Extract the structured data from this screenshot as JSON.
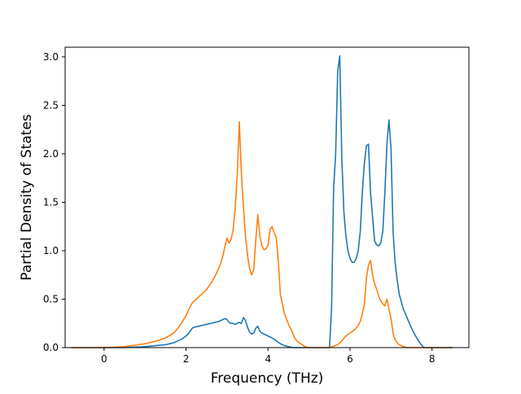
{
  "chart_data": {
    "type": "line",
    "title": "",
    "xlabel": "Frequency (THz)",
    "ylabel": "Partial Density of States",
    "xlim": [
      -0.95,
      8.9
    ],
    "ylim": [
      0,
      3.1
    ],
    "xticks": [
      0,
      2,
      4,
      6,
      8
    ],
    "yticks": [
      0.0,
      0.5,
      1.0,
      1.5,
      2.0,
      2.5,
      3.0
    ],
    "xtick_labels": [
      "0",
      "2",
      "4",
      "6",
      "8"
    ],
    "ytick_labels": [
      "0.0",
      "0.5",
      "1.0",
      "1.5",
      "2.0",
      "2.5",
      "3.0"
    ],
    "grid": false,
    "legend": "none",
    "series": [
      {
        "color": "#1f77b4",
        "x": [
          -0.8,
          0.0,
          0.5,
          1.0,
          1.5,
          1.7,
          1.8,
          1.9,
          2.0,
          2.05,
          2.1,
          2.15,
          2.2,
          2.3,
          2.4,
          2.5,
          2.6,
          2.7,
          2.8,
          2.9,
          2.95,
          3.0,
          3.05,
          3.1,
          3.15,
          3.2,
          3.25,
          3.3,
          3.35,
          3.4,
          3.45,
          3.5,
          3.55,
          3.6,
          3.65,
          3.7,
          3.75,
          3.8,
          3.85,
          3.9,
          4.0,
          4.1,
          4.2,
          4.3,
          4.4,
          4.5,
          4.6,
          4.7,
          4.8,
          4.9,
          5.0,
          5.2,
          5.4,
          5.5,
          5.55,
          5.6,
          5.65,
          5.7,
          5.75,
          5.8,
          5.85,
          5.9,
          5.95,
          6.0,
          6.05,
          6.1,
          6.15,
          6.2,
          6.25,
          6.3,
          6.35,
          6.4,
          6.45,
          6.5,
          6.55,
          6.6,
          6.65,
          6.7,
          6.75,
          6.8,
          6.85,
          6.9,
          6.95,
          7.0,
          7.05,
          7.1,
          7.15,
          7.2,
          7.3,
          7.4,
          7.5,
          7.6,
          7.7,
          7.8,
          8.0,
          8.5
        ],
        "y": [
          0.0,
          0.0,
          0.0,
          0.01,
          0.03,
          0.05,
          0.07,
          0.09,
          0.12,
          0.14,
          0.17,
          0.2,
          0.21,
          0.22,
          0.23,
          0.24,
          0.25,
          0.26,
          0.27,
          0.29,
          0.3,
          0.29,
          0.26,
          0.25,
          0.25,
          0.24,
          0.25,
          0.26,
          0.25,
          0.31,
          0.28,
          0.21,
          0.16,
          0.14,
          0.15,
          0.2,
          0.22,
          0.17,
          0.15,
          0.14,
          0.12,
          0.1,
          0.07,
          0.04,
          0.02,
          0.01,
          0.0,
          0.0,
          0.0,
          0.0,
          0.0,
          0.0,
          0.0,
          0.0,
          0.4,
          1.65,
          2.0,
          2.85,
          3.01,
          1.95,
          1.4,
          1.15,
          1.0,
          0.92,
          0.88,
          0.88,
          0.92,
          1.0,
          1.2,
          1.6,
          1.9,
          2.08,
          2.1,
          1.6,
          1.35,
          1.1,
          1.06,
          1.05,
          1.08,
          1.2,
          1.6,
          2.1,
          2.35,
          2.05,
          1.2,
          0.88,
          0.7,
          0.55,
          0.4,
          0.3,
          0.2,
          0.12,
          0.05,
          0.0,
          0.0,
          0.0
        ]
      },
      {
        "color": "#ff7f0e",
        "x": [
          -0.8,
          0.0,
          0.5,
          1.0,
          1.3,
          1.5,
          1.7,
          1.8,
          1.9,
          2.0,
          2.05,
          2.1,
          2.15,
          2.2,
          2.3,
          2.4,
          2.5,
          2.6,
          2.7,
          2.8,
          2.85,
          2.9,
          2.95,
          3.0,
          3.05,
          3.1,
          3.15,
          3.2,
          3.25,
          3.3,
          3.35,
          3.4,
          3.45,
          3.5,
          3.55,
          3.6,
          3.65,
          3.7,
          3.75,
          3.8,
          3.85,
          3.9,
          3.95,
          4.0,
          4.05,
          4.1,
          4.15,
          4.2,
          4.25,
          4.3,
          4.35,
          4.4,
          4.5,
          4.55,
          4.6,
          4.65,
          4.7,
          4.8,
          4.9,
          5.0,
          5.5,
          5.7,
          5.8,
          5.9,
          6.0,
          6.1,
          6.15,
          6.2,
          6.25,
          6.3,
          6.35,
          6.4,
          6.45,
          6.5,
          6.55,
          6.6,
          6.65,
          6.7,
          6.75,
          6.8,
          6.85,
          6.9,
          6.95,
          7.0,
          7.05,
          7.1,
          7.15,
          7.2,
          7.3,
          7.4,
          7.5,
          7.7,
          7.9,
          8.5
        ],
        "y": [
          0.0,
          0.0,
          0.01,
          0.04,
          0.07,
          0.1,
          0.15,
          0.2,
          0.26,
          0.33,
          0.38,
          0.42,
          0.46,
          0.48,
          0.52,
          0.56,
          0.6,
          0.66,
          0.73,
          0.82,
          0.88,
          0.95,
          1.05,
          1.13,
          1.08,
          1.12,
          1.22,
          1.45,
          1.8,
          2.33,
          1.8,
          1.45,
          1.15,
          0.95,
          0.82,
          0.75,
          0.8,
          1.1,
          1.37,
          1.15,
          1.05,
          1.01,
          1.02,
          1.06,
          1.22,
          1.25,
          1.18,
          1.14,
          0.9,
          0.55,
          0.45,
          0.35,
          0.24,
          0.2,
          0.15,
          0.1,
          0.07,
          0.04,
          0.01,
          0.0,
          0.0,
          0.03,
          0.07,
          0.12,
          0.15,
          0.18,
          0.2,
          0.23,
          0.27,
          0.35,
          0.45,
          0.72,
          0.85,
          0.9,
          0.75,
          0.66,
          0.6,
          0.53,
          0.48,
          0.45,
          0.43,
          0.5,
          0.4,
          0.3,
          0.15,
          0.08,
          0.05,
          0.03,
          0.01,
          0.0,
          0.0,
          0.0,
          0.0,
          0.0
        ]
      }
    ]
  }
}
